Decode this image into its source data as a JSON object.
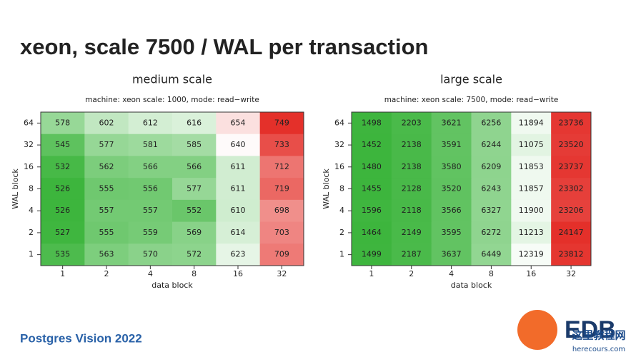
{
  "title": "xeon, scale 7500 / WAL per transaction",
  "footer": "Postgres Vision 2022",
  "logo": "EDB",
  "watermark": [
    "这里教程网",
    "herecours.com"
  ],
  "chart_data": [
    {
      "type": "heatmap",
      "title": "medium scale",
      "subtitle": "machine: xeon scale: 1000, mode: read−write",
      "x_label": "data block",
      "y_label": "WAL block",
      "x_categories": [
        "1",
        "2",
        "4",
        "8",
        "16",
        "32"
      ],
      "y_categories": [
        "64",
        "32",
        "16",
        "8",
        "4",
        "2",
        "1"
      ],
      "values": [
        [
          578,
          602,
          612,
          616,
          654,
          749
        ],
        [
          545,
          577,
          581,
          585,
          640,
          733
        ],
        [
          532,
          562,
          566,
          566,
          611,
          712
        ],
        [
          526,
          555,
          556,
          577,
          611,
          719
        ],
        [
          526,
          557,
          557,
          552,
          610,
          698
        ],
        [
          527,
          555,
          559,
          569,
          614,
          703
        ],
        [
          535,
          563,
          570,
          572,
          623,
          709
        ]
      ],
      "colors": [
        "#3db53d",
        "#ffffff",
        "#e4302a"
      ]
    },
    {
      "type": "heatmap",
      "title": "large scale",
      "subtitle": "machine: xeon scale: 7500, mode: read−write",
      "x_label": "data block",
      "y_label": "WAL block",
      "x_categories": [
        "1",
        "2",
        "4",
        "8",
        "16",
        "32"
      ],
      "y_categories": [
        "64",
        "32",
        "16",
        "8",
        "4",
        "2",
        "1"
      ],
      "values": [
        [
          1498,
          2203,
          3621,
          6256,
          11894,
          23736
        ],
        [
          1452,
          2138,
          3591,
          6244,
          11075,
          23520
        ],
        [
          1480,
          2138,
          3580,
          6209,
          11853,
          23737
        ],
        [
          1455,
          2128,
          3520,
          6243,
          11857,
          23302
        ],
        [
          1596,
          2118,
          3566,
          6327,
          11900,
          23206
        ],
        [
          1464,
          2149,
          3595,
          6272,
          11213,
          24147
        ],
        [
          1499,
          2187,
          3637,
          6449,
          12319,
          23812
        ]
      ],
      "colors": [
        "#3db53d",
        "#ffffff",
        "#e4302a"
      ]
    }
  ]
}
